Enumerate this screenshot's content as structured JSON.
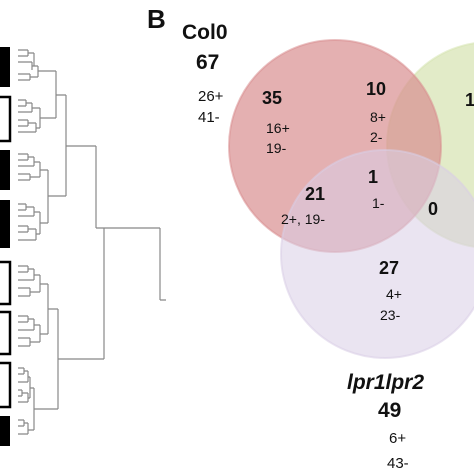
{
  "panel_b": {
    "letter": "B",
    "sets": {
      "col0": {
        "name": "Col0",
        "total": "67",
        "up": "26+",
        "down": "41-",
        "color": "#d98e90"
      },
      "right": {
        "color": "#d6e3b0"
      },
      "lpr": {
        "name": "lpr1lpr2",
        "total": "49",
        "up": "6+",
        "down": "43-",
        "color": "#d9cde6"
      }
    },
    "regions": {
      "col0_only": {
        "count": "35",
        "up": "16+",
        "down": "19-"
      },
      "col0_right": {
        "count": "10",
        "up": "8+",
        "down": "2-"
      },
      "right_only": {
        "count": "1"
      },
      "col0_lpr": {
        "count": "21",
        "detail": "2+, 19-"
      },
      "all_three": {
        "count": "1",
        "detail": "1-"
      },
      "right_lpr": {
        "count": "0"
      },
      "lpr_only": {
        "count": "27",
        "up": "4+",
        "down": "23-"
      }
    }
  },
  "dendrogram": {
    "line_color": "#888888",
    "box_color": "#000000"
  }
}
